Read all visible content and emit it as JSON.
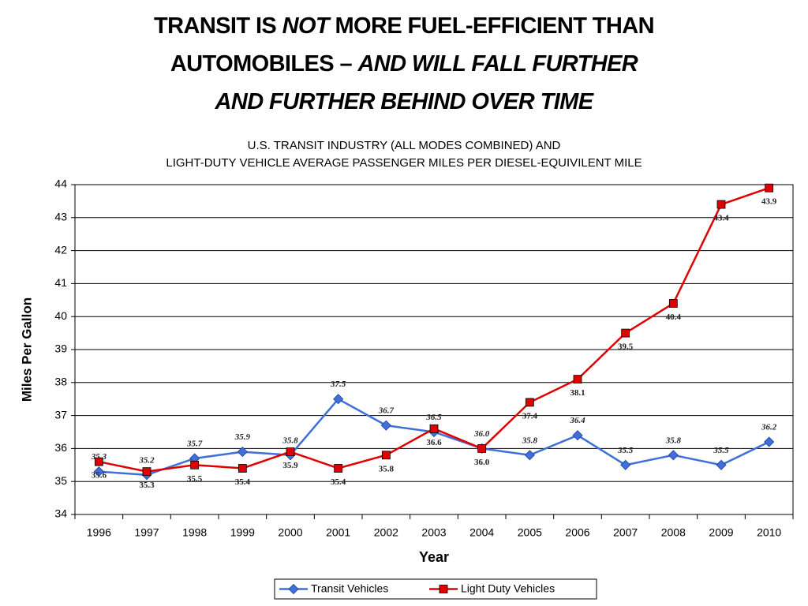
{
  "chart_data": {
    "type": "line",
    "title": [
      [
        {
          "text": "TRANSIT IS ",
          "italic": false
        },
        {
          "text": "NOT",
          "italic": true
        },
        {
          "text": " MORE FUEL-EFFICIENT THAN",
          "italic": false
        }
      ],
      [
        {
          "text": "AUTOMOBILES – ",
          "italic": false
        },
        {
          "text": "AND WILL FALL FURTHER",
          "italic": true
        }
      ],
      [
        {
          "text": "AND FURTHER BEHIND OVER TIME",
          "italic": true
        }
      ]
    ],
    "subtitle": [
      "U.S. TRANSIT INDUSTRY (ALL MODES COMBINED) AND",
      "LIGHT-DUTY VEHICLE AVERAGE PASSENGER MILES PER DIESEL-EQUIVILENT MILE"
    ],
    "x_label": "Year",
    "y_label": "Miles Per Gallon",
    "categories": [
      "1996",
      "1997",
      "1998",
      "1999",
      "2000",
      "2001",
      "2002",
      "2003",
      "2004",
      "2005",
      "2006",
      "2007",
      "2008",
      "2009",
      "2010"
    ],
    "series": [
      {
        "name": "Transit Vehicles",
        "color": "#3f6fd8",
        "marker": "diamond",
        "values": [
          35.3,
          35.2,
          35.7,
          35.9,
          35.8,
          37.5,
          36.7,
          36.5,
          36.0,
          35.8,
          36.4,
          35.5,
          35.8,
          35.5,
          36.2
        ],
        "value_labels": [
          "35.3",
          "35.2",
          "35.7",
          "35.9",
          "35.8",
          "37.5",
          "36.7",
          "36.5",
          "36.0",
          "35.8",
          "36.4",
          "35.5",
          "35.8",
          "35.5",
          "36.2"
        ]
      },
      {
        "name": "Light Duty Vehicles",
        "color": "#e00000",
        "marker": "square",
        "values": [
          35.6,
          35.3,
          35.5,
          35.4,
          35.9,
          35.4,
          35.8,
          36.6,
          36.0,
          37.4,
          38.1,
          39.5,
          40.4,
          43.4,
          43.9
        ],
        "value_labels": [
          "35.6",
          "35.3",
          "35.5",
          "35.4",
          "35.9",
          "35.4",
          "35.8",
          "36.6",
          "36.0",
          "37.4",
          "38.1",
          "39.5",
          "40.4",
          "43.4",
          "43.9"
        ]
      }
    ],
    "ylim": [
      34,
      44
    ],
    "yticks": [
      34,
      35,
      36,
      37,
      38,
      39,
      40,
      41,
      42,
      43,
      44
    ],
    "grid": true,
    "legend": "bottom"
  }
}
